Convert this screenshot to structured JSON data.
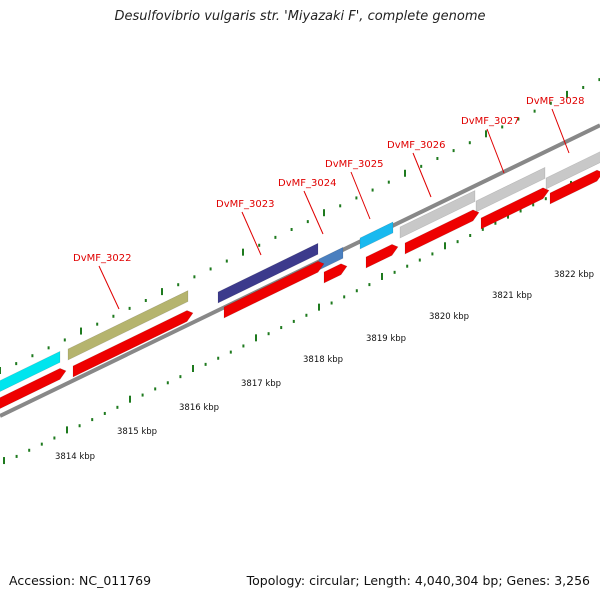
{
  "title": "Desulfovibrio vulgaris str. 'Miyazaki F', complete genome",
  "footer": {
    "accession": "Accession: NC_011769",
    "summary": "Topology: circular; Length: 4,040,304 bp; Genes: 3,256"
  },
  "colors": {
    "cds": "#ee0000",
    "cyan": "#00e5ee",
    "olive": "#b5b46e",
    "indigo": "#3c3a8c",
    "steelblue": "#4a7fbf",
    "skyblue": "#19b9ef",
    "gray": "#c8c8c8",
    "backbone": "#888888",
    "tick": "#1e7a1e",
    "label": "#e00000"
  },
  "scale_labels": [
    "3814 kbp",
    "3815 kbp",
    "3816 kbp",
    "3817 kbp",
    "3818 kbp",
    "3819 kbp",
    "3820 kbp",
    "3821 kbp",
    "3822 kbp"
  ],
  "gene_labels": [
    "DvMF_3022",
    "DvMF_3023",
    "DvMF_3024",
    "DvMF_3025",
    "DvMF_3026",
    "DvMF_3027",
    "DvMF_3028"
  ]
}
